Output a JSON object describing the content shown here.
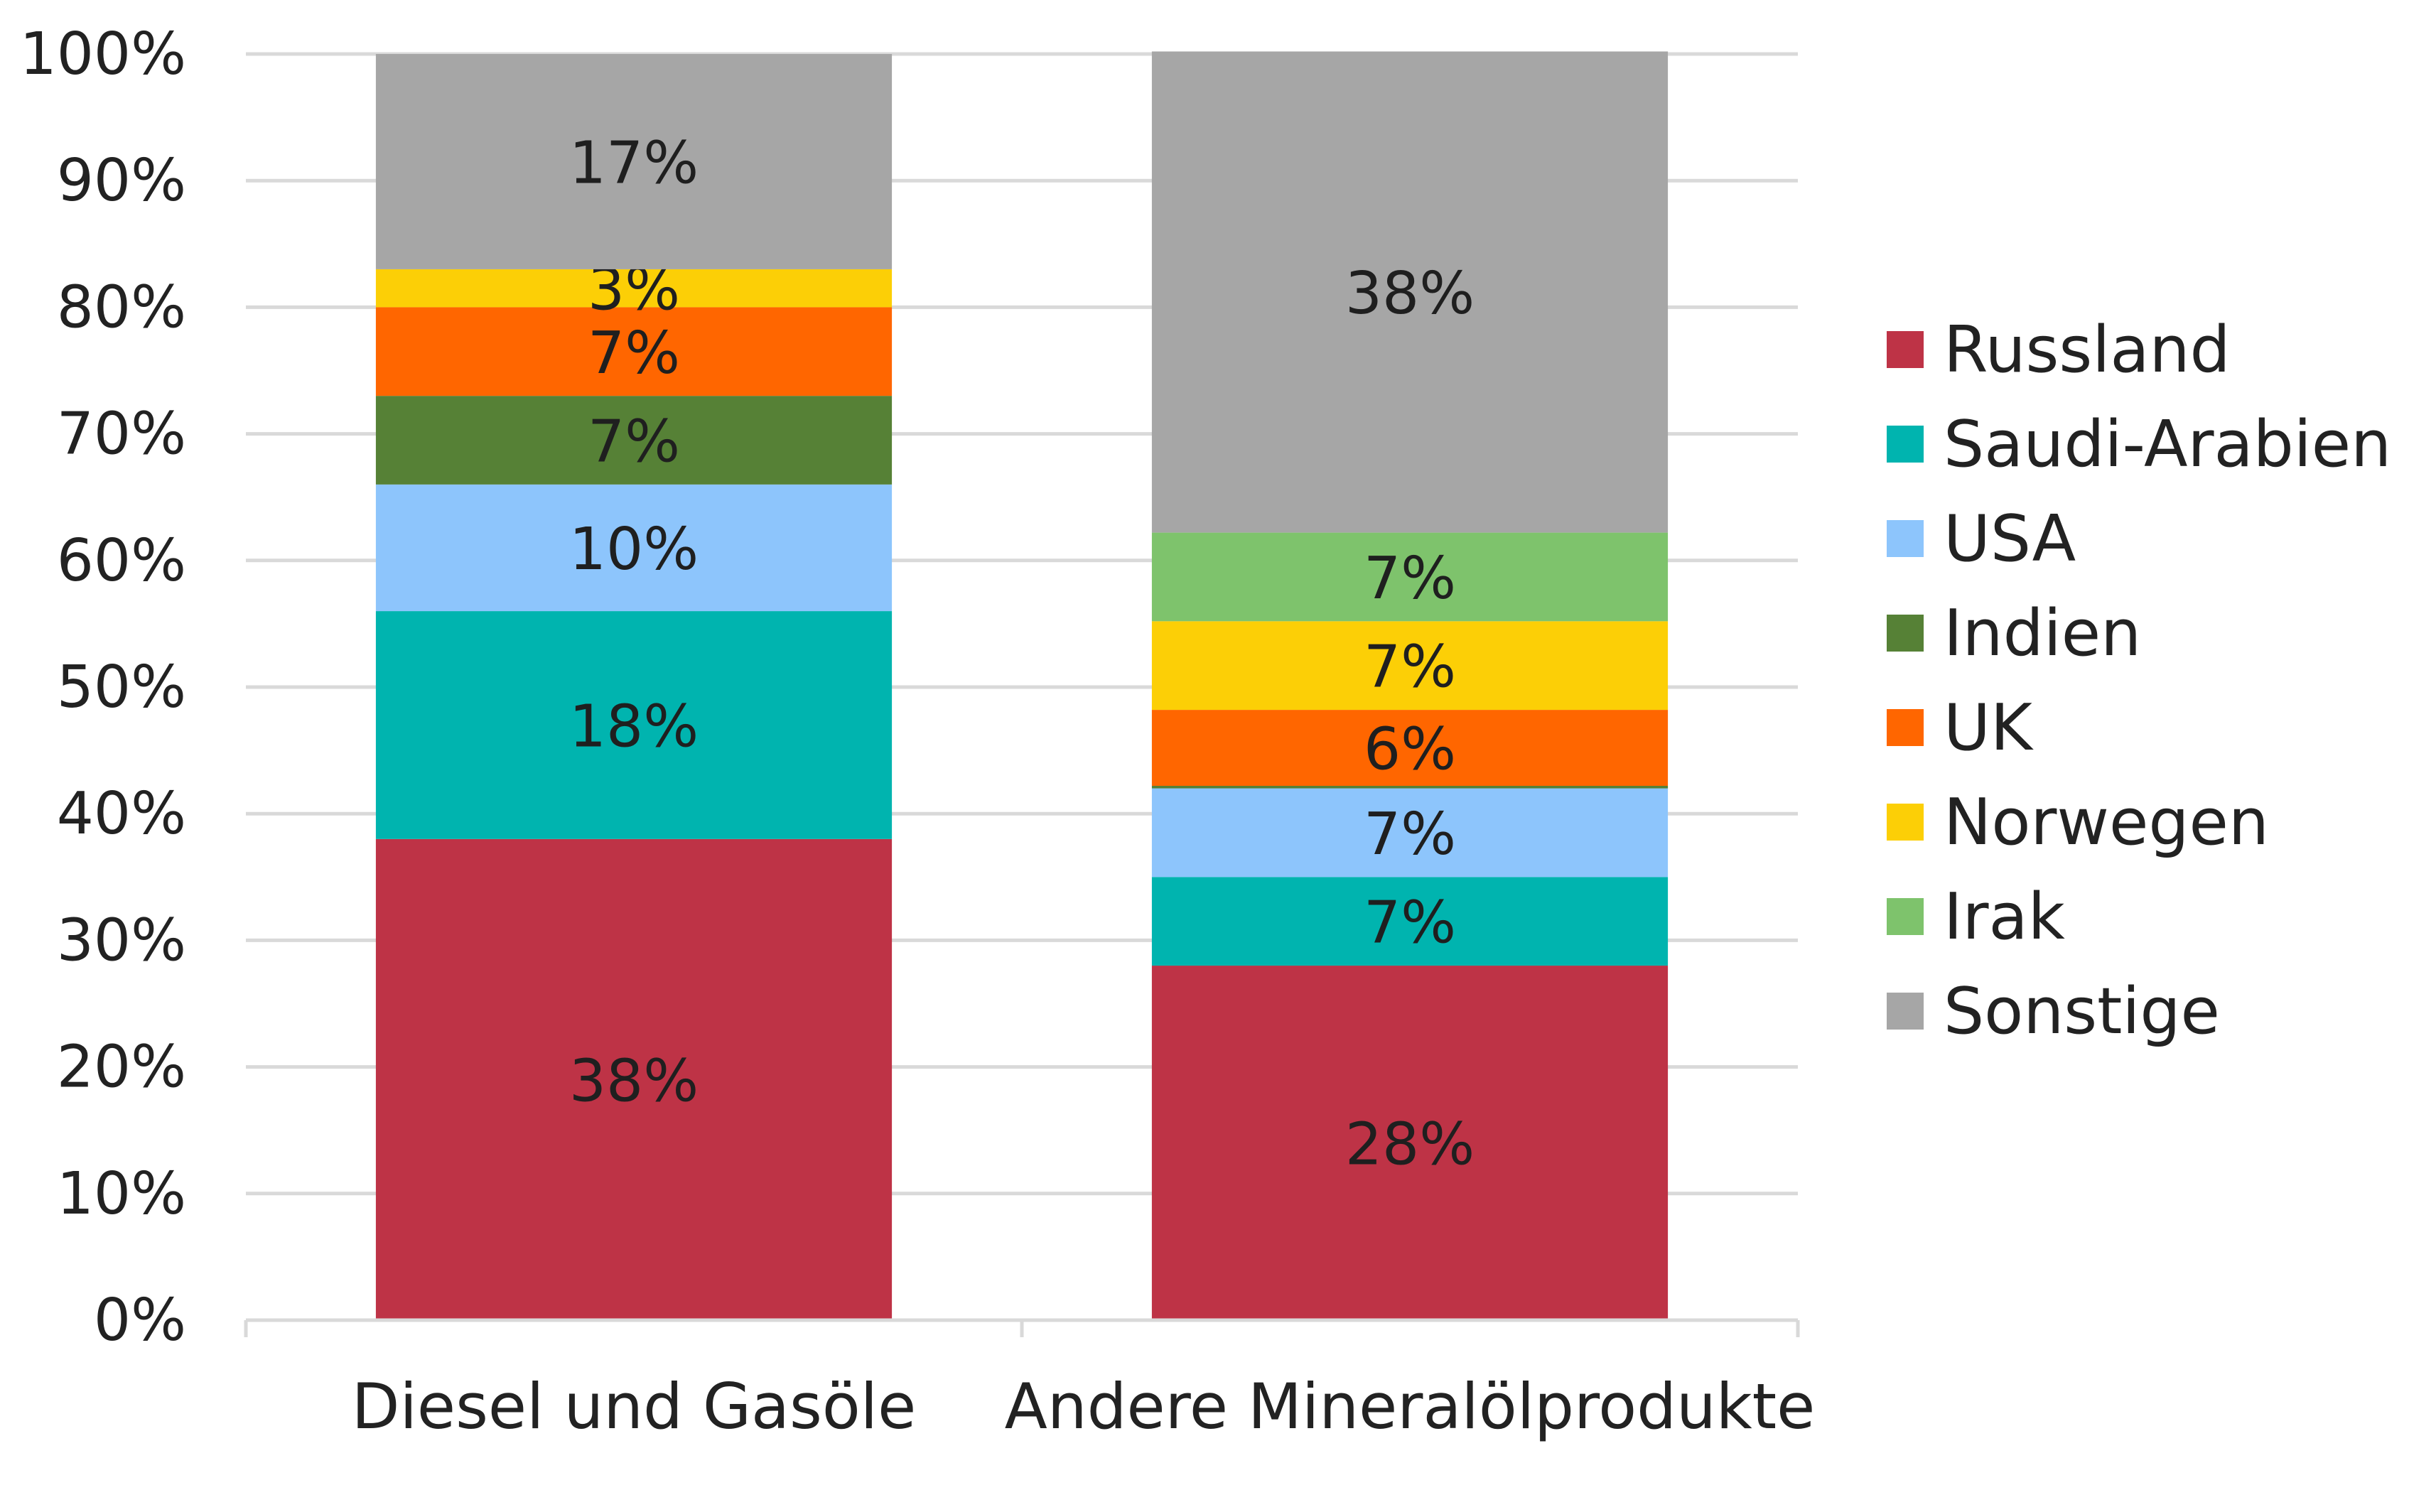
{
  "chart_data": {
    "type": "bar",
    "stacked": true,
    "categories": [
      "Diesel und Gasöle",
      "Andere Mineralölprodukte"
    ],
    "series": [
      {
        "name": "Russland",
        "color": "#BE3346",
        "values": [
          38,
          28
        ],
        "labels": [
          "38%",
          "28%"
        ]
      },
      {
        "name": "Saudi-Arabien",
        "color": "#00B4AF",
        "values": [
          18,
          7
        ],
        "labels": [
          "18%",
          "7%"
        ]
      },
      {
        "name": "USA",
        "color": "#8DC5FC",
        "values": [
          10,
          7
        ],
        "labels": [
          "10%",
          "7%"
        ]
      },
      {
        "name": "Indien",
        "color": "#568136",
        "values": [
          7,
          0.2
        ],
        "labels": [
          "7%",
          ""
        ]
      },
      {
        "name": "UK",
        "color": "#FF6600",
        "values": [
          7,
          6
        ],
        "labels": [
          "7%",
          "6%"
        ]
      },
      {
        "name": "Norwegen",
        "color": "#FCCF06",
        "values": [
          3,
          7
        ],
        "labels": [
          "3%",
          "7%"
        ]
      },
      {
        "name": "Irak",
        "color": "#7EC36C",
        "values": [
          0,
          7
        ],
        "labels": [
          "",
          "7%"
        ]
      },
      {
        "name": "Sonstige",
        "color": "#A6A6A6",
        "values": [
          17,
          38
        ],
        "labels": [
          "17%",
          "38%"
        ]
      }
    ],
    "y_ticks": [
      "0%",
      "10%",
      "20%",
      "30%",
      "40%",
      "50%",
      "60%",
      "70%",
      "80%",
      "90%",
      "100%"
    ],
    "ylim": [
      0,
      100
    ],
    "grid": true,
    "legend_position": "right",
    "title": "",
    "xlabel": "",
    "ylabel": ""
  }
}
